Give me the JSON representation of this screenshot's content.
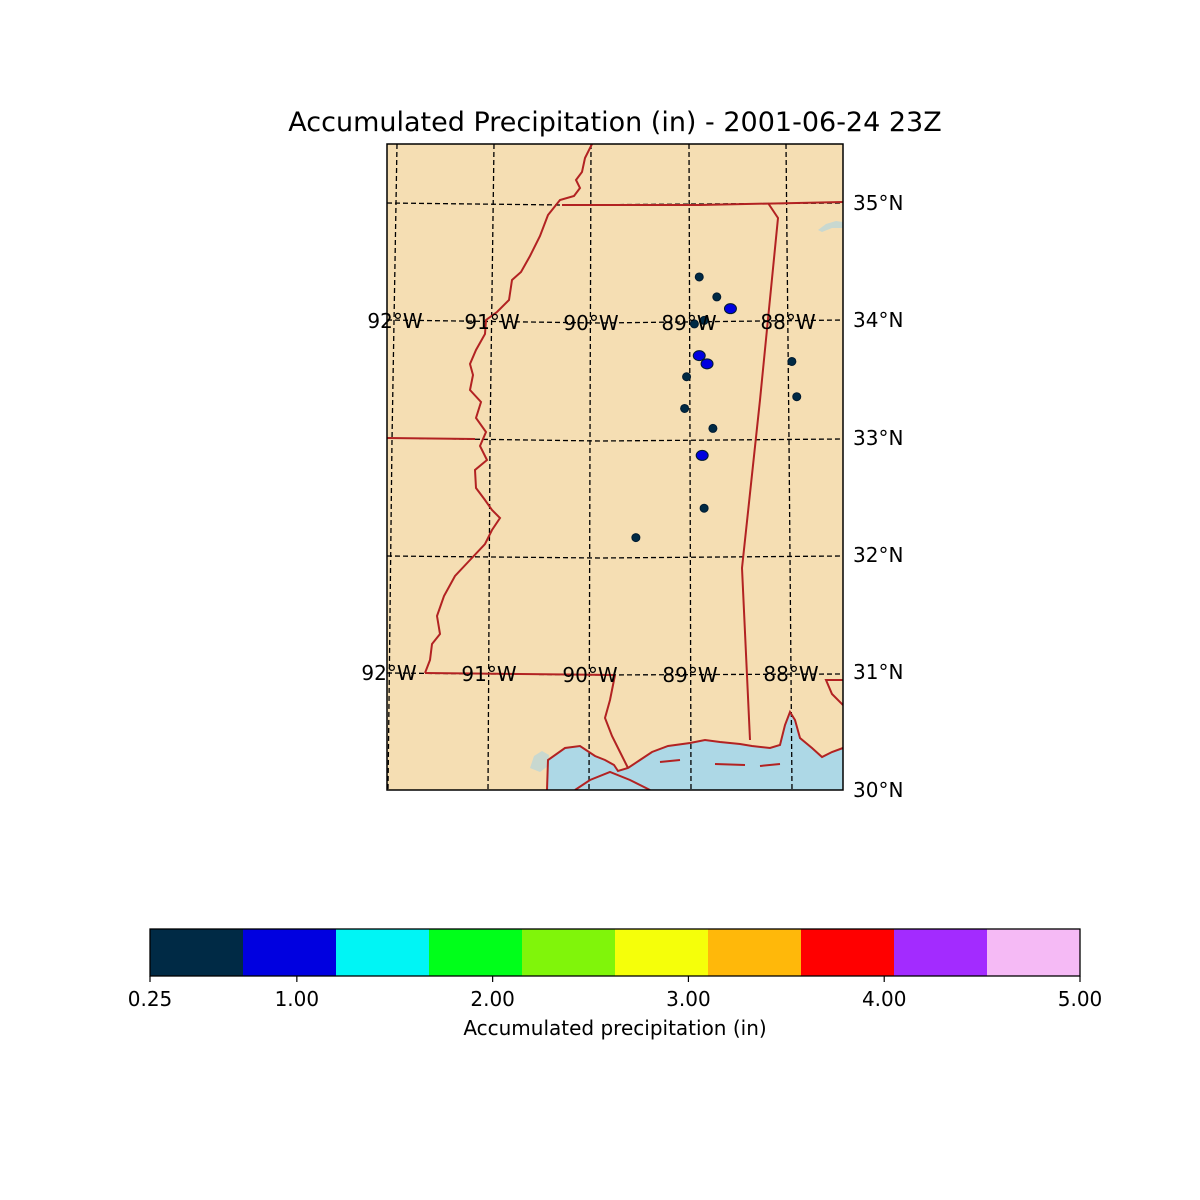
{
  "title": "Accumulated Precipitation (in) - 2001-06-24 23Z",
  "map": {
    "land_color": "#f5deb3",
    "water_color": "#add8e6",
    "inland_water_color": "#c8d8d0",
    "boundary_color": "#b22222",
    "lat_labels": [
      "35°N",
      "34°N",
      "33°N",
      "32°N",
      "31°N",
      "30°N"
    ],
    "lon_labels_upper": [
      "92°W",
      "91°W",
      "90°W",
      "89°W",
      "88°W"
    ],
    "lon_labels_lower": [
      "92°W",
      "91°W",
      "90°W",
      "89°W",
      "88°W"
    ]
  },
  "precip_cells": [
    {
      "lon": -88.9,
      "lat": 34.37,
      "level": 1
    },
    {
      "lon": -88.58,
      "lat": 34.1,
      "level": 2
    },
    {
      "lon": -88.72,
      "lat": 34.2,
      "level": 1
    },
    {
      "lon": -88.85,
      "lat": 34.0,
      "level": 1
    },
    {
      "lon": -88.95,
      "lat": 33.97,
      "level": 1
    },
    {
      "lon": -88.9,
      "lat": 33.7,
      "level": 2
    },
    {
      "lon": -88.82,
      "lat": 33.63,
      "level": 2
    },
    {
      "lon": -89.03,
      "lat": 33.52,
      "level": 1
    },
    {
      "lon": -89.05,
      "lat": 33.25,
      "level": 1
    },
    {
      "lon": -88.87,
      "lat": 32.85,
      "level": 2
    },
    {
      "lon": -88.76,
      "lat": 33.08,
      "level": 1
    },
    {
      "lon": -87.95,
      "lat": 33.65,
      "level": 1
    },
    {
      "lon": -87.9,
      "lat": 33.35,
      "level": 1
    },
    {
      "lon": -88.85,
      "lat": 32.4,
      "level": 1
    },
    {
      "lon": -89.55,
      "lat": 32.15,
      "level": 1
    }
  ],
  "colorbar": {
    "label": "Accumulated precipitation (in)",
    "colors": [
      "#002a45",
      "#0000e0",
      "#00f5f5",
      "#00ff1a",
      "#80f50a",
      "#f5ff0a",
      "#ffb80a",
      "#ff0000",
      "#a32bff",
      "#f5baf5"
    ],
    "ticks": [
      "0.25",
      "1.00",
      "2.00",
      "3.00",
      "4.00",
      "5.00"
    ],
    "tick_values": [
      0.25,
      1.0,
      2.0,
      3.0,
      4.0,
      5.0
    ],
    "range": [
      0.25,
      5.0
    ]
  }
}
